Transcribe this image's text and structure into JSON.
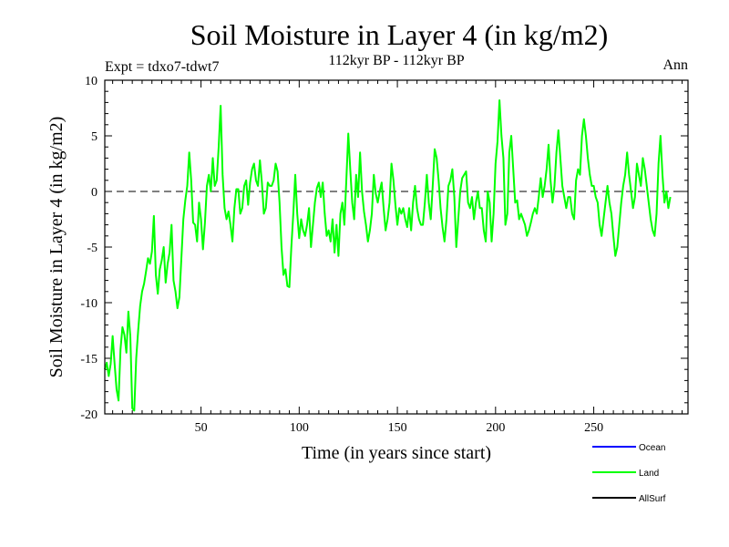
{
  "chart_data": {
    "type": "line",
    "title": "Soil Moisture in Layer 4 (in kg/m2)",
    "subtitle": "112kyr BP - 112kyr BP",
    "expt_label": "Expt = tdxo7-tdwt7",
    "season_label": "Ann",
    "xlabel": "Time (in years since start)",
    "ylabel": "Soil Moisture in Layer 4 (in kg/m2)",
    "xlim": [
      1,
      298
    ],
    "ylim": [
      -20,
      10
    ],
    "x_ticks": [
      50,
      100,
      150,
      200,
      250
    ],
    "y_ticks": [
      10,
      5,
      0,
      -5,
      -10,
      -15,
      -20
    ],
    "zero_line": true,
    "legend_position": "bottom-right",
    "legend": [
      {
        "name": "Ocean",
        "color": "#0000ff"
      },
      {
        "name": "Land",
        "color": "#00ff00"
      },
      {
        "name": "AllSurf",
        "color": "#000000"
      }
    ],
    "series": [
      {
        "name": "Land",
        "color": "#00ff00",
        "x_start": 1,
        "x_step": 1,
        "values": [
          -16.0,
          -15.4,
          -16.6,
          -15.5,
          -13.0,
          -15.5,
          -17.8,
          -18.8,
          -14.2,
          -12.2,
          -12.9,
          -14.5,
          -10.8,
          -13.0,
          -19.5,
          -19.7,
          -15.0,
          -12.5,
          -10.3,
          -9.0,
          -8.3,
          -7.2,
          -6.0,
          -6.5,
          -5.4,
          -2.2,
          -7.5,
          -9.2,
          -7.0,
          -6.2,
          -5.0,
          -8.2,
          -6.5,
          -5.5,
          -3.0,
          -8.0,
          -9.0,
          -10.5,
          -9.5,
          -6.0,
          -2.5,
          -0.8,
          0.5,
          3.5,
          1.0,
          -2.8,
          -3.0,
          -4.5,
          -1.0,
          -2.5,
          -5.2,
          -2.8,
          0.5,
          1.5,
          0.0,
          3.0,
          0.5,
          1.0,
          4.0,
          7.7,
          1.5,
          -1.5,
          -2.5,
          -1.8,
          -3.0,
          -4.5,
          -1.5,
          0.2,
          0.2,
          -2.0,
          -1.5,
          0.5,
          1.0,
          -1.2,
          0.8,
          2.0,
          2.5,
          1.0,
          0.5,
          2.8,
          0.8,
          -2.0,
          -1.5,
          0.8,
          0.5,
          0.5,
          1.0,
          2.5,
          1.8,
          -1.0,
          -5.0,
          -7.5,
          -7.0,
          -8.5,
          -8.6,
          -5.0,
          -2.0,
          1.5,
          -2.0,
          -4.2,
          -2.5,
          -3.5,
          -4.0,
          -3.0,
          -1.5,
          -5.0,
          -3.0,
          -1.0,
          0.3,
          0.8,
          -0.5,
          0.8,
          -2.0,
          -4.0,
          -3.5,
          -4.5,
          -2.5,
          -5.5,
          -3.0,
          -5.8,
          -2.0,
          -1.0,
          -3.0,
          1.0,
          5.2,
          2.0,
          -1.0,
          -2.5,
          1.5,
          -0.5,
          3.5,
          0.0,
          -1.8,
          -3.0,
          -4.5,
          -3.5,
          -2.0,
          1.5,
          -0.2,
          -1.0,
          0.0,
          0.8,
          -1.5,
          -3.5,
          -2.5,
          -1.0,
          2.5,
          1.0,
          -1.2,
          -3.0,
          -1.5,
          -2.0,
          -1.5,
          -2.5,
          -3.2,
          -1.5,
          -3.5,
          -1.0,
          0.5,
          -1.5,
          -2.5,
          -3.0,
          -3.0,
          -1.0,
          1.5,
          -1.0,
          -2.5,
          0.5,
          3.8,
          3.0,
          1.0,
          -1.5,
          -3.2,
          -4.5,
          -2.5,
          0.5,
          1.0,
          2.0,
          -0.5,
          -5.0,
          -2.5,
          0.0,
          1.2,
          1.5,
          1.8,
          -1.0,
          -1.5,
          -0.5,
          -2.5,
          -1.0,
          0.0,
          -1.5,
          -1.5,
          -3.5,
          -4.5,
          0.0,
          -1.0,
          -4.5,
          -2.0,
          2.5,
          4.5,
          8.2,
          5.0,
          3.0,
          -3.0,
          -2.0,
          3.5,
          5.0,
          2.0,
          -1.0,
          -0.8,
          -2.5,
          -2.0,
          -2.5,
          -3.0,
          -4.0,
          -3.5,
          -2.8,
          -2.0,
          -1.5,
          -2.0,
          -0.5,
          1.2,
          -0.5,
          0.5,
          2.0,
          4.2,
          1.0,
          -1.0,
          0.5,
          3.5,
          5.5,
          3.0,
          0.5,
          -0.5,
          -1.5,
          -0.5,
          -0.5,
          -2.0,
          -2.5,
          1.0,
          2.0,
          1.5,
          5.0,
          6.5,
          5.0,
          3.0,
          1.5,
          0.5,
          0.5,
          -0.5,
          -1.0,
          -3.0,
          -4.0,
          -2.5,
          -1.0,
          0.5,
          -1.0,
          -2.0,
          -4.0,
          -5.8,
          -5.0,
          -3.0,
          -1.0,
          0.5,
          1.5,
          3.5,
          1.5,
          0.0,
          -1.5,
          -0.5,
          2.5,
          1.5,
          0.5,
          3.0,
          2.0,
          0.5,
          -1.0,
          -2.5,
          -3.5,
          -4.0,
          -2.0,
          2.5,
          5.0,
          1.5,
          -1.0,
          0.0,
          -1.5,
          -0.5
        ]
      }
    ]
  }
}
